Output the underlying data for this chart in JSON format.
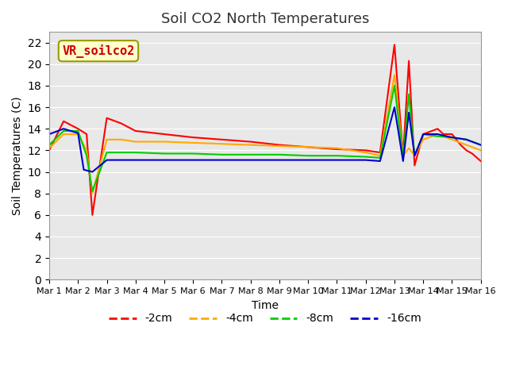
{
  "title": "Soil CO2 North Temperatures",
  "xlabel": "Time",
  "ylabel": "Soil Temperatures (C)",
  "annotation": "VR_soilco2",
  "ylim": [
    0,
    23
  ],
  "yticks": [
    0,
    2,
    4,
    6,
    8,
    10,
    12,
    14,
    16,
    18,
    20,
    22
  ],
  "bg_color": "#e8e8e8",
  "plot_bg": "#e8e8e8",
  "legend_labels": [
    "-2cm",
    "-4cm",
    "-8cm",
    "-16cm"
  ],
  "legend_colors": [
    "#ff0000",
    "#ffaa00",
    "#00cc00",
    "#0000cc"
  ],
  "x_labels": [
    "Mar 1",
    "Mar 2",
    "Mar 3",
    "Mar 4",
    "Mar 5",
    "Mar 6",
    "Mar 7",
    "Mar 8",
    "Mar 9",
    "Mar 10",
    "Mar 11",
    "Mar 12",
    "Mar 13",
    "Mar 14",
    "Mar 15",
    "Mar 16"
  ],
  "series": {
    "-2cm": {
      "color": "#ff0000",
      "x": [
        0,
        0.5,
        1.0,
        1.3,
        1.5,
        2.0,
        2.5,
        3.0,
        4.0,
        5.0,
        6.0,
        7.0,
        8.0,
        9.0,
        10.0,
        11.0,
        11.5,
        12.0,
        12.3,
        12.5,
        12.7,
        13.0,
        13.5,
        13.7,
        14.0,
        14.3,
        14.5,
        14.7,
        15.0
      ],
      "y": [
        12.0,
        14.7,
        14.0,
        13.5,
        6.0,
        15.0,
        14.5,
        13.8,
        13.5,
        13.2,
        13.0,
        12.8,
        12.5,
        12.3,
        12.1,
        12.0,
        11.8,
        21.8,
        11.5,
        20.3,
        10.6,
        13.5,
        14.0,
        13.5,
        13.5,
        12.5,
        12.0,
        11.7,
        11.0
      ]
    },
    "-4cm": {
      "color": "#ffaa00",
      "x": [
        0,
        0.5,
        1.0,
        1.3,
        1.5,
        2.0,
        2.5,
        3.0,
        4.0,
        5.0,
        6.0,
        7.0,
        8.0,
        9.0,
        10.0,
        11.0,
        11.5,
        12.0,
        12.3,
        12.5,
        12.7,
        13.0,
        13.5,
        14.0,
        14.5,
        15.0
      ],
      "y": [
        12.2,
        13.5,
        13.5,
        12.0,
        8.0,
        13.0,
        13.0,
        12.8,
        12.8,
        12.7,
        12.6,
        12.5,
        12.4,
        12.3,
        12.2,
        11.8,
        11.5,
        19.0,
        11.5,
        12.2,
        11.5,
        13.0,
        13.5,
        13.0,
        12.5,
        12.0
      ]
    },
    "-8cm": {
      "color": "#00cc00",
      "x": [
        0,
        0.5,
        1.0,
        1.3,
        1.5,
        2.0,
        2.5,
        3.0,
        4.0,
        5.0,
        6.0,
        7.0,
        8.0,
        9.0,
        10.0,
        11.0,
        11.5,
        12.0,
        12.3,
        12.5,
        12.7,
        13.0,
        13.5,
        14.0,
        14.5,
        15.0
      ],
      "y": [
        12.5,
        13.8,
        13.8,
        11.5,
        8.2,
        11.8,
        11.8,
        11.8,
        11.7,
        11.7,
        11.6,
        11.6,
        11.6,
        11.5,
        11.5,
        11.4,
        11.3,
        18.0,
        11.3,
        17.2,
        11.5,
        13.5,
        13.3,
        13.2,
        13.0,
        12.5
      ]
    },
    "-16cm": {
      "color": "#0000cc",
      "x": [
        0,
        0.5,
        1.0,
        1.2,
        1.5,
        2.0,
        2.5,
        3.0,
        4.0,
        5.0,
        6.0,
        7.0,
        8.0,
        9.0,
        10.0,
        11.0,
        11.5,
        12.0,
        12.3,
        12.5,
        12.7,
        13.0,
        13.5,
        14.0,
        14.5,
        15.0
      ],
      "y": [
        13.5,
        14.0,
        13.6,
        10.2,
        10.0,
        11.1,
        11.1,
        11.1,
        11.1,
        11.1,
        11.1,
        11.1,
        11.1,
        11.1,
        11.1,
        11.1,
        11.0,
        16.0,
        11.0,
        15.5,
        11.5,
        13.5,
        13.5,
        13.2,
        13.0,
        12.5
      ]
    }
  }
}
